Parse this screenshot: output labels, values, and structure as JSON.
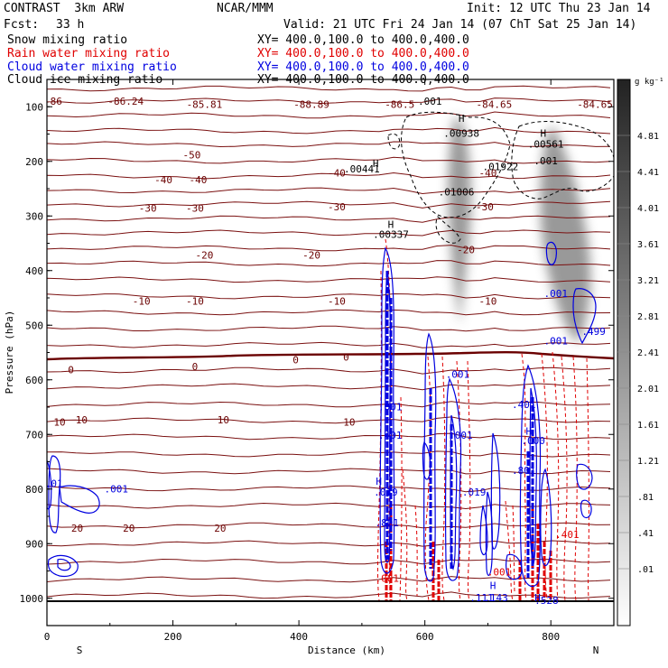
{
  "header": {
    "line1_left": "CONTRAST  3km ARW",
    "line1_mid": "NCAR/MMM",
    "line1_right": "Init: 12 UTC Thu 23 Jan 14",
    "fcst_label": "Fcst:",
    "fcst_value": "33 h",
    "valid": "Valid: 21 UTC Fri 24 Jan 14 (07 ChT Sat 25 Jan 14)"
  },
  "fields": [
    {
      "name": "Snow mixing ratio",
      "xy": "XY= 400.0,100.0 to 400.0,400.0",
      "color": "#000000"
    },
    {
      "name": "Rain water mixing ratio",
      "xy": "XY= 400.0,100.0 to 400.0,400.0",
      "color": "#e00000"
    },
    {
      "name": "Cloud water mixing ratio",
      "xy": "XY= 400.0,100.0 to 400.0,400.0",
      "color": "#0000e0"
    },
    {
      "name": "Cloud ice mixing ratio",
      "xy": "XY= 400.0,100.0 to 400.0,400.0",
      "color": "#000000"
    }
  ],
  "colorbar": {
    "unit": "g kg⁻¹",
    "labels": [
      "4.81",
      "4.41",
      "4.01",
      "3.61",
      "3.21",
      "2.81",
      "2.41",
      "2.01",
      "1.61",
      "1.21",
      ".81",
      ".41",
      ".01"
    ]
  },
  "chart_data": {
    "type": "contour-cross-section",
    "xlabel": "Distance (km)",
    "ylabel": "Pressure (hPa)",
    "xlim": [
      0,
      900
    ],
    "ylim": [
      1050,
      50
    ],
    "xticks": [
      0,
      200,
      400,
      600,
      800
    ],
    "yticks": [
      100,
      200,
      300,
      400,
      500,
      600,
      700,
      800,
      900,
      1000
    ],
    "x_end_labels": [
      "S",
      "N"
    ],
    "temperature_labels": [
      {
        "x": 10,
        "p": 96,
        "text": "-86"
      },
      {
        "x": 125,
        "p": 96,
        "text": "-86.24"
      },
      {
        "x": 250,
        "p": 102,
        "text": "-85.81"
      },
      {
        "x": 420,
        "p": 102,
        "text": "-88.89"
      },
      {
        "x": 560,
        "p": 102,
        "text": "-86.5"
      },
      {
        "x": 710,
        "p": 102,
        "text": "-84.65"
      },
      {
        "x": 870,
        "p": 102,
        "text": "-84.65"
      },
      {
        "x": 230,
        "p": 195,
        "text": "-50"
      },
      {
        "x": 185,
        "p": 240,
        "text": "-40"
      },
      {
        "x": 240,
        "p": 240,
        "text": "-40"
      },
      {
        "x": 460,
        "p": 228,
        "text": "-40"
      },
      {
        "x": 700,
        "p": 228,
        "text": "-40"
      },
      {
        "x": 160,
        "p": 292,
        "text": "-30"
      },
      {
        "x": 235,
        "p": 292,
        "text": "-30"
      },
      {
        "x": 460,
        "p": 290,
        "text": "-30"
      },
      {
        "x": 695,
        "p": 290,
        "text": "-30"
      },
      {
        "x": 250,
        "p": 378,
        "text": "-20"
      },
      {
        "x": 420,
        "p": 378,
        "text": "-20"
      },
      {
        "x": 665,
        "p": 368,
        "text": "-20"
      },
      {
        "x": 150,
        "p": 462,
        "text": "-10"
      },
      {
        "x": 235,
        "p": 462,
        "text": "-10"
      },
      {
        "x": 460,
        "p": 462,
        "text": "-10"
      },
      {
        "x": 700,
        "p": 462,
        "text": "-10"
      },
      {
        "x": 38,
        "p": 588,
        "text": "0"
      },
      {
        "x": 235,
        "p": 582,
        "text": "0"
      },
      {
        "x": 395,
        "p": 570,
        "text": "0"
      },
      {
        "x": 475,
        "p": 565,
        "text": "0"
      },
      {
        "x": 20,
        "p": 684,
        "text": "10"
      },
      {
        "x": 55,
        "p": 680,
        "text": "10"
      },
      {
        "x": 280,
        "p": 680,
        "text": "10"
      },
      {
        "x": 480,
        "p": 684,
        "text": "10"
      },
      {
        "x": 48,
        "p": 878,
        "text": "20"
      },
      {
        "x": 130,
        "p": 878,
        "text": "20"
      },
      {
        "x": 275,
        "p": 878,
        "text": "20"
      }
    ],
    "ice_labels": [
      {
        "x": 522,
        "p": 210,
        "text": "H"
      },
      {
        "x": 500,
        "p": 220,
        "text": ".00441"
      },
      {
        "x": 658,
        "p": 128,
        "text": "H"
      },
      {
        "x": 658,
        "p": 155,
        "text": ".00938"
      },
      {
        "x": 788,
        "p": 155,
        "text": "H"
      },
      {
        "x": 792,
        "p": 175,
        "text": ".00561"
      },
      {
        "x": 720,
        "p": 216,
        "text": ".01922"
      },
      {
        "x": 650,
        "p": 262,
        "text": ".01006"
      },
      {
        "x": 546,
        "p": 322,
        "text": "H"
      },
      {
        "x": 546,
        "p": 340,
        "text": ".00337"
      }
    ],
    "snow_labels": [
      {
        "x": 608,
        "p": 96,
        "text": ".001"
      },
      {
        "x": 792,
        "p": 205,
        "text": ".001"
      }
    ],
    "cloud_water_labels": [
      {
        "x": 11,
        "p": 796,
        "text": ".01"
      },
      {
        "x": 110,
        "p": 806,
        "text": ".001"
      },
      {
        "x": 808,
        "p": 448,
        "text": ".001"
      },
      {
        "x": 868,
        "p": 518,
        "text": ".499"
      },
      {
        "x": 808,
        "p": 535,
        "text": ".001"
      },
      {
        "x": 545,
        "p": 656,
        "text": ".001"
      },
      {
        "x": 545,
        "p": 708,
        "text": ".401"
      },
      {
        "x": 652,
        "p": 596,
        "text": ".001"
      },
      {
        "x": 657,
        "p": 708,
        "text": ".001"
      },
      {
        "x": 757,
        "p": 652,
        "text": ".401"
      },
      {
        "x": 765,
        "p": 700,
        "text": "H"
      },
      {
        "x": 772,
        "p": 718,
        "text": ".000"
      },
      {
        "x": 757,
        "p": 772,
        "text": ".801"
      },
      {
        "x": 527,
        "p": 792,
        "text": "H"
      },
      {
        "x": 538,
        "p": 812,
        "text": ".019"
      },
      {
        "x": 678,
        "p": 812,
        "text": ".019"
      },
      {
        "x": 540,
        "p": 868,
        "text": ".801"
      },
      {
        "x": 708,
        "p": 983,
        "text": "H"
      },
      {
        "x": 713,
        "p": 1005,
        "text": ".143"
      },
      {
        "x": 690,
        "p": 1005,
        "text": ".111"
      },
      {
        "x": 779,
        "p": 1005,
        "text": "H"
      },
      {
        "x": 793,
        "p": 1010,
        "text": ".528"
      }
    ],
    "rain_labels": [
      {
        "x": 826,
        "p": 890,
        "text": ".401"
      },
      {
        "x": 718,
        "p": 958,
        "text": ".001"
      },
      {
        "x": 540,
        "p": 970,
        "text": ".001"
      }
    ]
  }
}
